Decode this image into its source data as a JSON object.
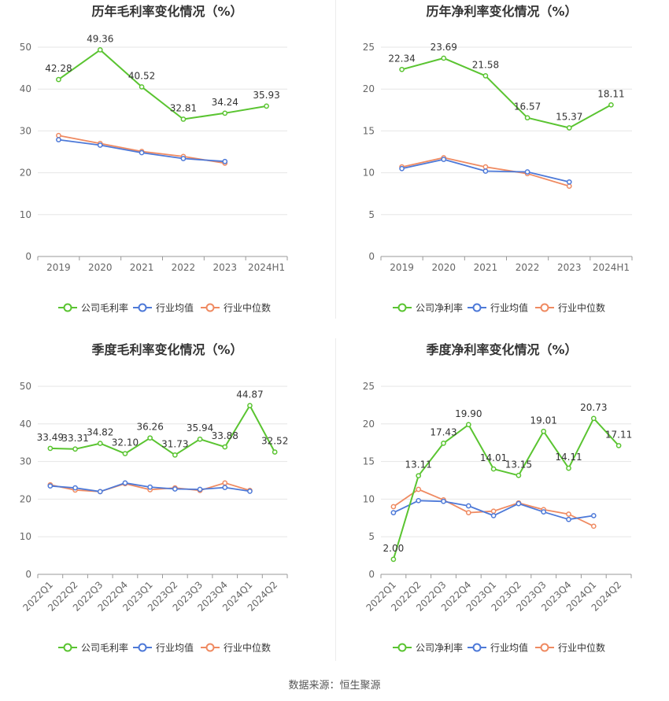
{
  "source": "数据来源：恒生聚源",
  "legend_labels": [
    "公司毛利率",
    "行业均值",
    "行业中位数"
  ],
  "colors": {
    "company": "#5ac431",
    "avg": "#4d79d8",
    "median": "#ef8a61",
    "grid": "#e6e6e6",
    "axis": "#999999"
  },
  "chart_data": [
    {
      "id": "annual-gross",
      "type": "line",
      "title": "历年毛利率变化情况（%）",
      "categories": [
        "2019",
        "2020",
        "2021",
        "2022",
        "2023",
        "2024H1"
      ],
      "ylim": [
        0,
        50
      ],
      "yticks": [
        0,
        10,
        20,
        30,
        40,
        50
      ],
      "rotate_x": false,
      "series": [
        {
          "name": "公司毛利率",
          "color": "#5ac431",
          "values": [
            42.28,
            49.36,
            40.52,
            32.81,
            34.24,
            35.93
          ],
          "labels": [
            "42.28",
            "49.36",
            "40.52",
            "32.81",
            "34.24",
            "35.93"
          ]
        },
        {
          "name": "行业均值",
          "color": "#4d79d8",
          "values": [
            27.9,
            26.6,
            24.8,
            23.4,
            22.7,
            null
          ]
        },
        {
          "name": "行业中位数",
          "color": "#ef8a61",
          "values": [
            28.9,
            27.0,
            25.1,
            23.9,
            22.3,
            null
          ]
        }
      ]
    },
    {
      "id": "annual-net",
      "type": "line",
      "title": "历年净利率变化情况（%）",
      "categories": [
        "2019",
        "2020",
        "2021",
        "2022",
        "2023",
        "2024H1"
      ],
      "ylim": [
        0,
        25
      ],
      "yticks": [
        0,
        5,
        10,
        15,
        20,
        25
      ],
      "rotate_x": false,
      "series": [
        {
          "name": "公司净利率",
          "color": "#5ac431",
          "values": [
            22.34,
            23.69,
            21.58,
            16.57,
            15.37,
            18.11
          ],
          "labels": [
            "22.34",
            "23.69",
            "21.58",
            "16.57",
            "15.37",
            "18.11"
          ]
        },
        {
          "name": "行业均值",
          "color": "#4d79d8",
          "values": [
            10.5,
            11.6,
            10.2,
            10.1,
            8.9,
            null
          ]
        },
        {
          "name": "行业中位数",
          "color": "#ef8a61",
          "values": [
            10.7,
            11.8,
            10.7,
            9.9,
            8.4,
            null
          ]
        }
      ]
    },
    {
      "id": "quarter-gross",
      "type": "line",
      "title": "季度毛利率变化情况（%）",
      "categories": [
        "2022Q1",
        "2022Q2",
        "2022Q3",
        "2022Q4",
        "2023Q1",
        "2023Q2",
        "2023Q3",
        "2023Q4",
        "2024Q1",
        "2024Q2"
      ],
      "ylim": [
        0,
        50
      ],
      "yticks": [
        0,
        10,
        20,
        30,
        40,
        50
      ],
      "rotate_x": true,
      "series": [
        {
          "name": "公司毛利率",
          "color": "#5ac431",
          "values": [
            33.49,
            33.31,
            34.82,
            32.1,
            36.26,
            31.73,
            35.94,
            33.88,
            44.87,
            32.52
          ],
          "labels": [
            "33.49",
            "33.31",
            "34.82",
            "32.10",
            "36.26",
            "31.73",
            "35.94",
            "33.88",
            "44.87",
            "32.52"
          ]
        },
        {
          "name": "行业均值",
          "color": "#4d79d8",
          "values": [
            23.5,
            23.0,
            22.0,
            24.3,
            23.2,
            22.7,
            22.6,
            23.1,
            22.1,
            null
          ]
        },
        {
          "name": "行业中位数",
          "color": "#ef8a61",
          "values": [
            23.8,
            22.4,
            22.0,
            24.1,
            22.5,
            23.0,
            22.3,
            24.3,
            22.3,
            null
          ]
        }
      ]
    },
    {
      "id": "quarter-net",
      "type": "line",
      "title": "季度净利率变化情况（%）",
      "categories": [
        "2022Q1",
        "2022Q2",
        "2022Q3",
        "2022Q4",
        "2023Q1",
        "2023Q2",
        "2023Q3",
        "2023Q4",
        "2024Q1",
        "2024Q2"
      ],
      "ylim": [
        0,
        25
      ],
      "yticks": [
        0,
        5,
        10,
        15,
        20,
        25
      ],
      "rotate_x": true,
      "series": [
        {
          "name": "公司净利率",
          "color": "#5ac431",
          "values": [
            2.0,
            13.11,
            17.43,
            19.9,
            14.01,
            13.15,
            19.01,
            14.11,
            20.73,
            17.11
          ],
          "labels": [
            "2.00",
            "13.11",
            "17.43",
            "19.90",
            "14.01",
            "13.15",
            "19.01",
            "14.11",
            "20.73",
            "17.11"
          ]
        },
        {
          "name": "行业均值",
          "color": "#4d79d8",
          "values": [
            8.2,
            9.8,
            9.7,
            9.1,
            7.8,
            9.4,
            8.3,
            7.3,
            7.8,
            null
          ]
        },
        {
          "name": "行业中位数",
          "color": "#ef8a61",
          "values": [
            9.0,
            11.3,
            9.9,
            8.2,
            8.4,
            9.5,
            8.6,
            8.0,
            6.4,
            null
          ]
        }
      ]
    }
  ]
}
